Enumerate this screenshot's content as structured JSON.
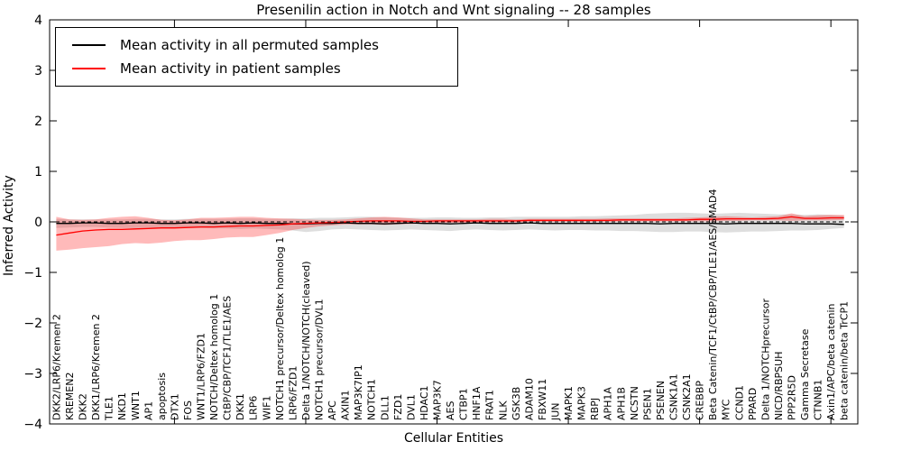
{
  "figure": {
    "title": "Presenilin action in Notch and Wnt signaling -- 28 samples",
    "xlabel": "Cellular Entities",
    "ylabel": "Inferred Activity",
    "legend": [
      {
        "label": "Mean activity in all permuted samples",
        "color": "#000000"
      },
      {
        "label": "Mean activity in patient samples",
        "color": "#ff0000"
      }
    ]
  },
  "chart_data": {
    "type": "line",
    "title": "Presenilin action in Notch and Wnt signaling -- 28 samples",
    "xlabel": "Cellular Entities",
    "ylabel": "Inferred Activity",
    "ylim": [
      -4,
      4
    ],
    "xlim": [
      -0.51,
      61.05
    ],
    "yticks": [
      -4,
      -3,
      -2,
      -1,
      0,
      1,
      2,
      3,
      4
    ],
    "grid": false,
    "legend_position": "upper left",
    "axis_tick_positions_1based": [
      10,
      20,
      30,
      40,
      50,
      60
    ],
    "zero_line": {
      "style": "dashed",
      "color": "#000000"
    },
    "categories": [
      "DKK2/LRP6/Kremen 2",
      "KREMEN2",
      "DKK2",
      "DKK1/LRP6/Kremen 2",
      "TLE1",
      "NKD1",
      "WNT1",
      "AP1",
      "apoptosis",
      "DTX1",
      "FOS",
      "WNT1/LRP6/FZD1",
      "NOTCH/Deltex homolog 1",
      "CtBP/CBP/TCF1/TLE1/AES",
      "DKK1",
      "LRP6",
      "WIF1",
      "NOTCH1 precursor/Deltex homolog 1",
      "LRP6/FZD1",
      "Delta 1/NOTCH/NOTCH(cleaved)",
      "NOTCH1 precursor/DVL1",
      "APC",
      "AXIN1",
      "MAP3K7IP1",
      "NOTCH1",
      "DLL1",
      "FZD1",
      "DVL1",
      "HDAC1",
      "MAP3K7",
      "AES",
      "CTBP1",
      "HNF1A",
      "FRAT1",
      "NLK",
      "GSK3B",
      "ADAM10",
      "FBXW11",
      "JUN",
      "MAPK1",
      "MAPK3",
      "RBPJ",
      "APH1A",
      "APH1B",
      "NCSTN",
      "PSEN1",
      "PSENEN",
      "CSNK1A1",
      "CSNK2A1",
      "CREBBP",
      "Beta Catenin/TCF1/CtBP/CBP/TLE1/AES/SMAD4",
      "MYC",
      "CCND1",
      "PPARD",
      "Delta 1/NOTCHprecursor",
      "NICD/RBPSUH",
      "PPP2R5D",
      "Gamma Secretase",
      "CTNNB1",
      "Axin1/APC/beta catenin",
      "beta catenin/beta TrCP1"
    ],
    "series": [
      {
        "name": "Mean activity in all permuted samples",
        "color": "#000000",
        "band_color": "rgba(0,0,0,0.13)",
        "values": [
          -0.03,
          -0.03,
          -0.02,
          -0.02,
          -0.03,
          -0.03,
          -0.02,
          -0.02,
          -0.03,
          -0.03,
          -0.02,
          -0.02,
          -0.03,
          -0.02,
          -0.03,
          -0.02,
          -0.03,
          -0.03,
          -0.04,
          -0.04,
          -0.03,
          -0.03,
          -0.02,
          -0.03,
          -0.03,
          -0.04,
          -0.03,
          -0.02,
          -0.03,
          -0.03,
          -0.04,
          -0.03,
          -0.02,
          -0.03,
          -0.03,
          -0.03,
          -0.02,
          -0.03,
          -0.03,
          -0.03,
          -0.03,
          -0.03,
          -0.03,
          -0.03,
          -0.03,
          -0.03,
          -0.04,
          -0.03,
          -0.03,
          -0.03,
          -0.03,
          -0.04,
          -0.03,
          -0.03,
          -0.03,
          -0.03,
          -0.03,
          -0.04,
          -0.04,
          -0.04,
          -0.05
        ],
        "band_upper": [
          0.06,
          0.05,
          0.05,
          0.05,
          0.05,
          0.05,
          0.06,
          0.06,
          0.05,
          0.05,
          0.06,
          0.06,
          0.06,
          0.06,
          0.07,
          0.07,
          0.06,
          0.06,
          0.07,
          0.07,
          0.08,
          0.08,
          0.09,
          0.1,
          0.1,
          0.09,
          0.08,
          0.08,
          0.08,
          0.09,
          0.09,
          0.08,
          0.08,
          0.09,
          0.09,
          0.1,
          0.1,
          0.1,
          0.1,
          0.1,
          0.11,
          0.11,
          0.12,
          0.13,
          0.14,
          0.16,
          0.17,
          0.18,
          0.18,
          0.17,
          0.16,
          0.17,
          0.18,
          0.17,
          0.16,
          0.15,
          0.15,
          0.14,
          0.15,
          0.14,
          0.12
        ],
        "band_lower": [
          -0.12,
          -0.11,
          -0.1,
          -0.1,
          -0.11,
          -0.12,
          -0.12,
          -0.11,
          -0.12,
          -0.13,
          -0.12,
          -0.12,
          -0.13,
          -0.13,
          -0.14,
          -0.13,
          -0.14,
          -0.15,
          -0.17,
          -0.2,
          -0.18,
          -0.15,
          -0.14,
          -0.15,
          -0.16,
          -0.17,
          -0.16,
          -0.15,
          -0.16,
          -0.17,
          -0.18,
          -0.16,
          -0.15,
          -0.16,
          -0.17,
          -0.16,
          -0.15,
          -0.16,
          -0.17,
          -0.16,
          -0.16,
          -0.17,
          -0.17,
          -0.18,
          -0.18,
          -0.19,
          -0.2,
          -0.2,
          -0.19,
          -0.19,
          -0.2,
          -0.21,
          -0.2,
          -0.19,
          -0.19,
          -0.18,
          -0.17,
          -0.17,
          -0.16,
          -0.14,
          -0.12
        ]
      },
      {
        "name": "Mean activity in patient samples",
        "color": "#ff0000",
        "band_color": "rgba(255,0,0,0.27)",
        "values": [
          -0.26,
          -0.22,
          -0.18,
          -0.16,
          -0.15,
          -0.15,
          -0.14,
          -0.13,
          -0.12,
          -0.12,
          -0.11,
          -0.1,
          -0.1,
          -0.09,
          -0.08,
          -0.08,
          -0.07,
          -0.06,
          -0.04,
          -0.03,
          -0.02,
          -0.01,
          0.0,
          0.01,
          0.02,
          0.02,
          0.02,
          0.01,
          0.01,
          0.02,
          0.02,
          0.02,
          0.02,
          0.02,
          0.02,
          0.02,
          0.03,
          0.03,
          0.03,
          0.03,
          0.03,
          0.03,
          0.03,
          0.04,
          0.04,
          0.04,
          0.04,
          0.04,
          0.04,
          0.05,
          0.05,
          0.06,
          0.06,
          0.06,
          0.06,
          0.07,
          0.1,
          0.07,
          0.07,
          0.08,
          0.08
        ],
        "band_upper": [
          0.1,
          0.05,
          0.04,
          0.05,
          0.08,
          0.1,
          0.11,
          0.08,
          0.04,
          0.03,
          0.05,
          0.08,
          0.08,
          0.09,
          0.1,
          0.1,
          0.08,
          0.07,
          0.06,
          0.05,
          0.04,
          0.04,
          0.05,
          0.07,
          0.09,
          0.1,
          0.09,
          0.07,
          0.05,
          0.05,
          0.05,
          0.05,
          0.05,
          0.06,
          0.06,
          0.05,
          0.06,
          0.06,
          0.06,
          0.06,
          0.06,
          0.06,
          0.07,
          0.07,
          0.07,
          0.07,
          0.07,
          0.07,
          0.08,
          0.09,
          0.1,
          0.11,
          0.1,
          0.09,
          0.1,
          0.11,
          0.17,
          0.11,
          0.13,
          0.14,
          0.14
        ],
        "band_lower": [
          -0.57,
          -0.55,
          -0.52,
          -0.5,
          -0.48,
          -0.44,
          -0.42,
          -0.43,
          -0.41,
          -0.38,
          -0.36,
          -0.36,
          -0.34,
          -0.31,
          -0.3,
          -0.3,
          -0.26,
          -0.22,
          -0.16,
          -0.12,
          -0.09,
          -0.07,
          -0.05,
          -0.05,
          -0.05,
          -0.06,
          -0.05,
          -0.04,
          -0.03,
          -0.02,
          -0.02,
          -0.02,
          -0.01,
          -0.01,
          -0.01,
          -0.01,
          0.0,
          0.0,
          0.0,
          0.0,
          0.0,
          0.0,
          0.0,
          0.01,
          0.01,
          0.01,
          0.01,
          0.01,
          0.01,
          0.01,
          0.01,
          0.02,
          0.02,
          0.03,
          0.03,
          0.03,
          0.02,
          0.03,
          0.03,
          0.03,
          0.04
        ]
      }
    ]
  }
}
